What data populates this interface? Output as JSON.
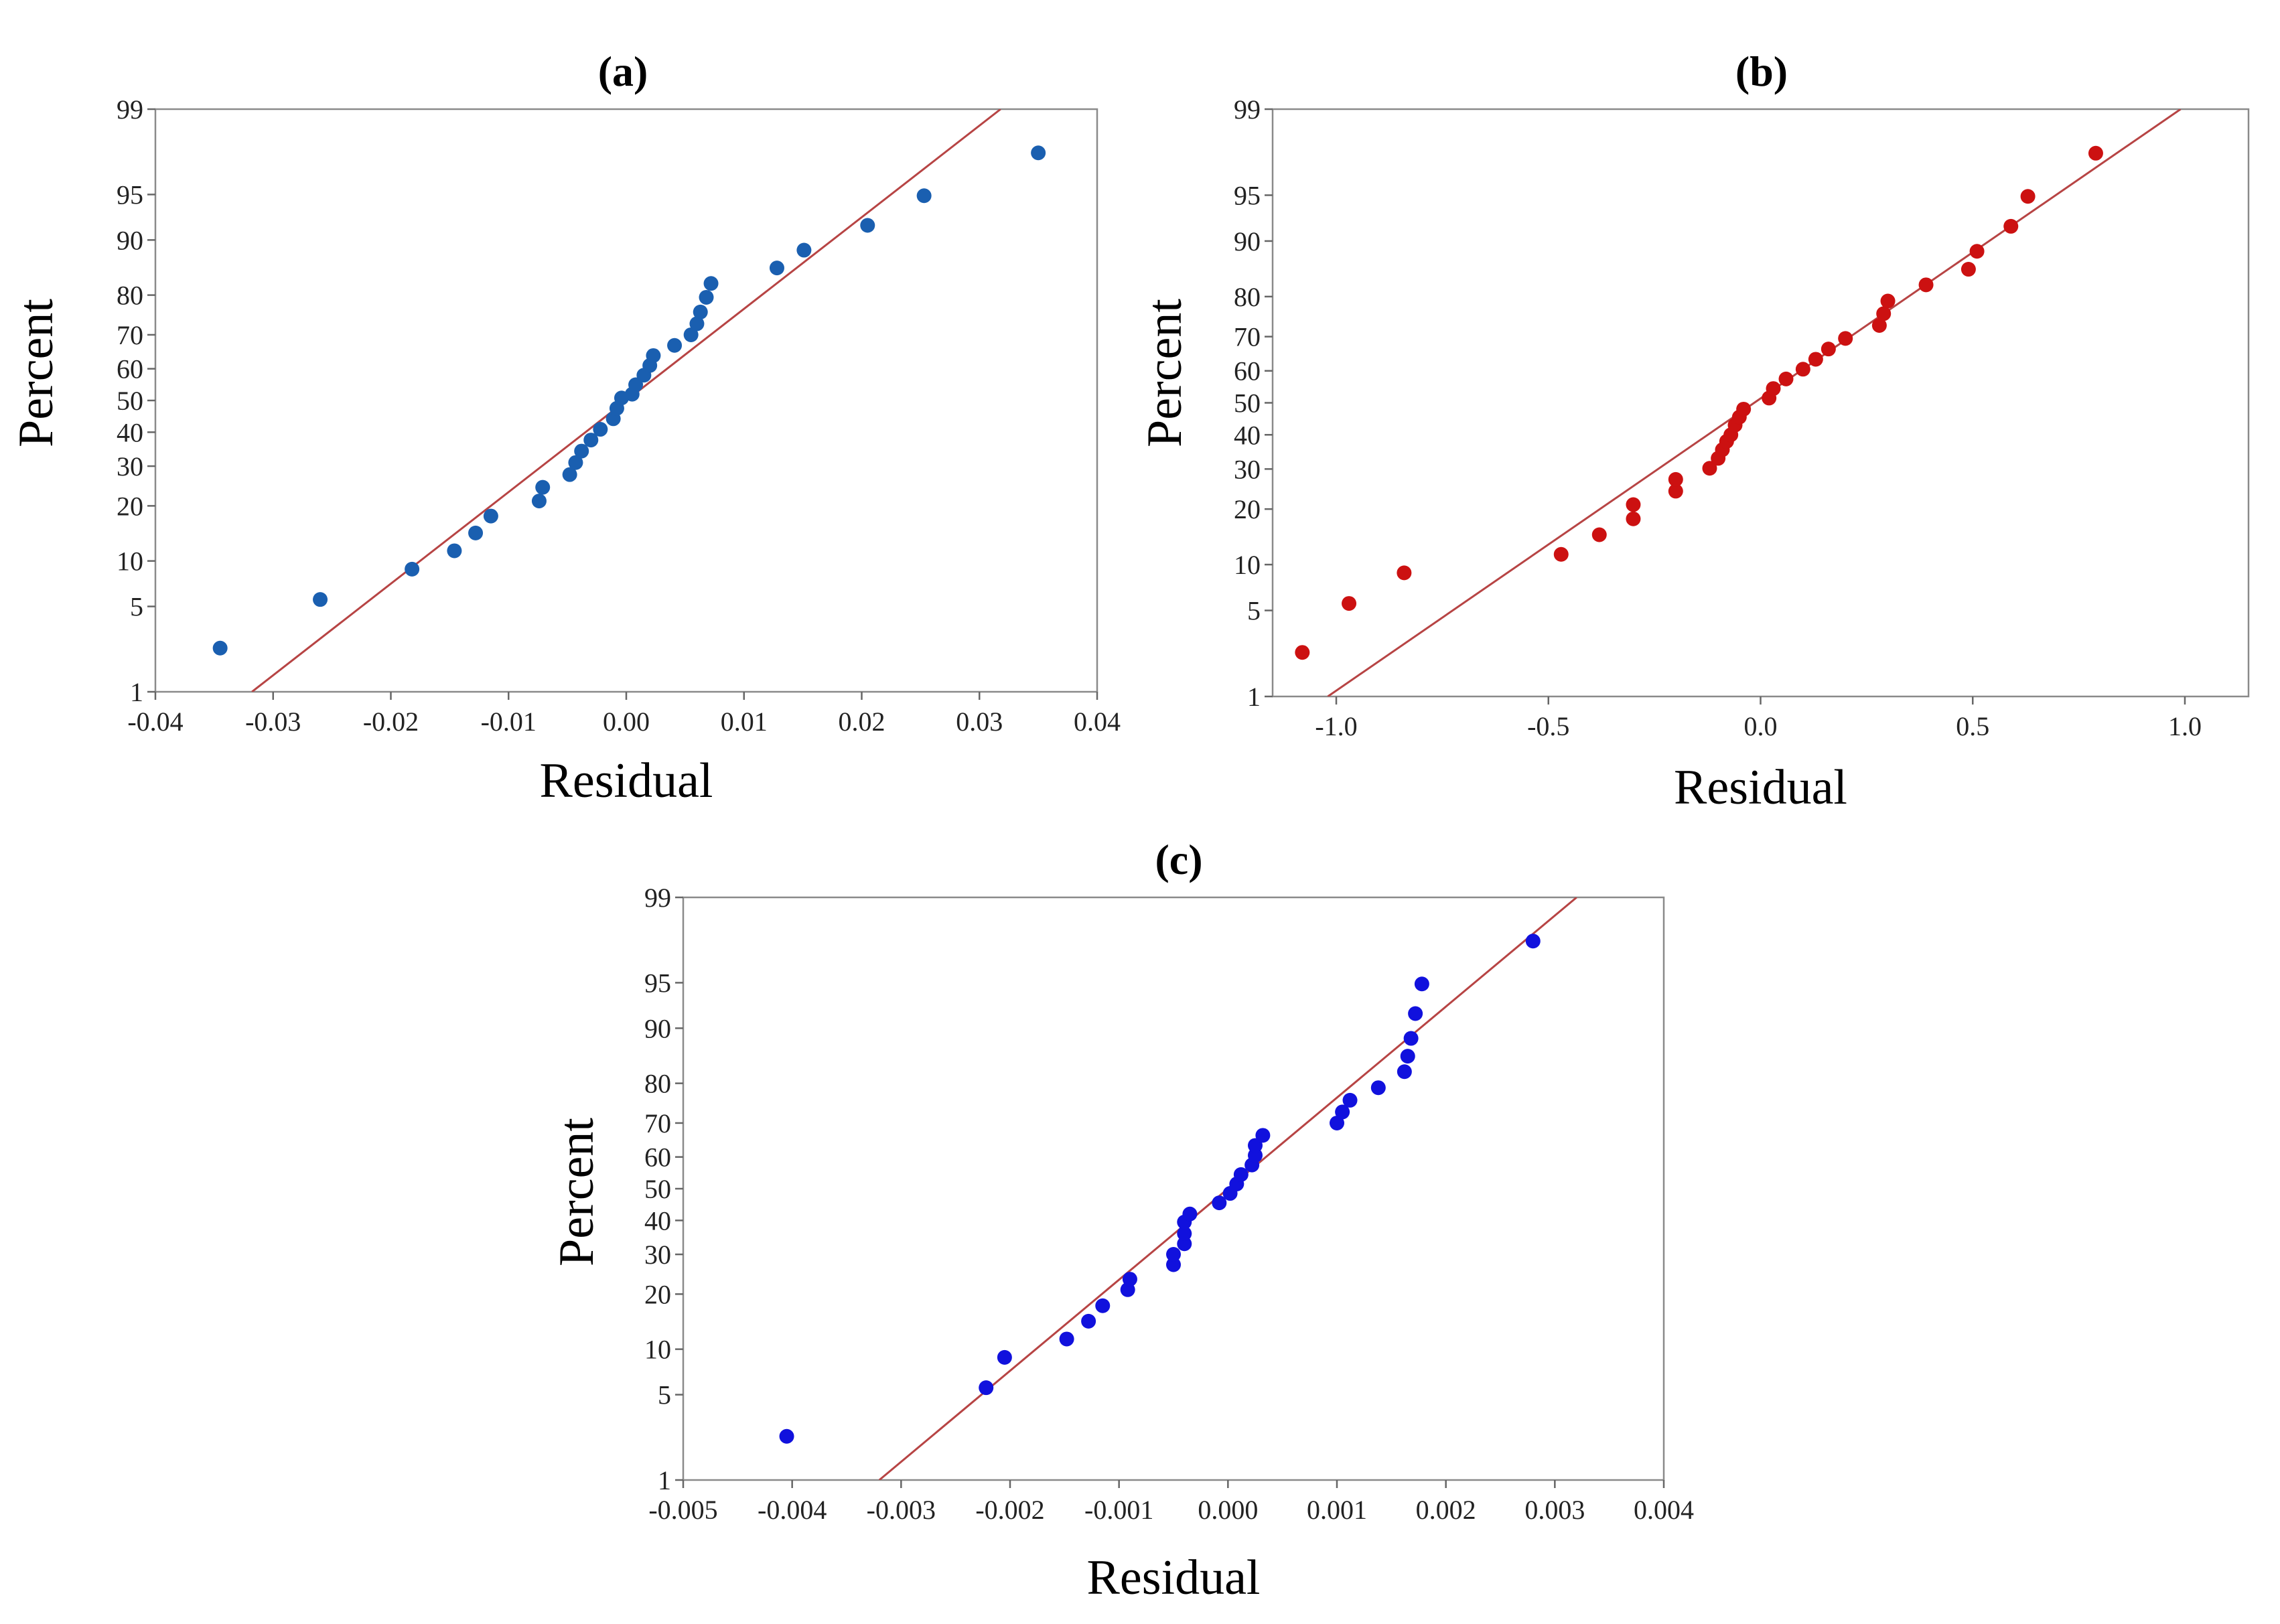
{
  "chart_data": [
    {
      "type": "scatter",
      "title": "(a)",
      "xlabel": "Residual",
      "ylabel": "Percent",
      "xlim": [
        -0.04,
        0.04
      ],
      "xticks": [
        -0.04,
        -0.03,
        -0.02,
        -0.01,
        0.0,
        0.01,
        0.02,
        0.03,
        0.04
      ],
      "xtick_labels": [
        "-0.04",
        "-0.03",
        "-0.02",
        "-0.01",
        "0.00",
        "0.01",
        "0.02",
        "0.03",
        "0.04"
      ],
      "ylim": [
        1,
        99
      ],
      "yticks": [
        1,
        5,
        10,
        20,
        30,
        40,
        50,
        60,
        70,
        80,
        90,
        95,
        99
      ],
      "ytick_labels": [
        "1",
        "5",
        "10",
        "20",
        "30",
        "40",
        "50",
        "60",
        "70",
        "80",
        "90",
        "95",
        "99"
      ],
      "point_color": "#1a5fb0",
      "line_color": "#b74444",
      "fit_line": {
        "x": [
          -0.0318,
          0.0318
        ],
        "percent": [
          1,
          99
        ]
      },
      "points": [
        {
          "x": -0.0345,
          "percent": 2.4
        },
        {
          "x": -0.026,
          "percent": 5.6
        },
        {
          "x": -0.0182,
          "percent": 8.9
        },
        {
          "x": -0.0146,
          "percent": 11.5
        },
        {
          "x": -0.0128,
          "percent": 14.5
        },
        {
          "x": -0.0115,
          "percent": 17.8
        },
        {
          "x": -0.0074,
          "percent": 21.1
        },
        {
          "x": -0.0071,
          "percent": 24.4
        },
        {
          "x": -0.0048,
          "percent": 27.7
        },
        {
          "x": -0.0043,
          "percent": 31.0
        },
        {
          "x": -0.0038,
          "percent": 34.3
        },
        {
          "x": -0.003,
          "percent": 37.6
        },
        {
          "x": -0.0022,
          "percent": 40.9
        },
        {
          "x": -0.0011,
          "percent": 44.2
        },
        {
          "x": -0.0008,
          "percent": 47.5
        },
        {
          "x": -0.0004,
          "percent": 50.8
        },
        {
          "x": 0.0005,
          "percent": 52.0
        },
        {
          "x": 0.0008,
          "percent": 55.0
        },
        {
          "x": 0.0015,
          "percent": 58.0
        },
        {
          "x": 0.002,
          "percent": 61.0
        },
        {
          "x": 0.0023,
          "percent": 64.0
        },
        {
          "x": 0.0041,
          "percent": 67.0
        },
        {
          "x": 0.0055,
          "percent": 70.0
        },
        {
          "x": 0.006,
          "percent": 73.0
        },
        {
          "x": 0.0063,
          "percent": 76.0
        },
        {
          "x": 0.0068,
          "percent": 79.5
        },
        {
          "x": 0.0072,
          "percent": 82.5
        },
        {
          "x": 0.0128,
          "percent": 85.5
        },
        {
          "x": 0.0151,
          "percent": 88.5
        },
        {
          "x": 0.0205,
          "percent": 91.9
        },
        {
          "x": 0.0253,
          "percent": 94.9
        },
        {
          "x": 0.035,
          "percent": 97.6
        }
      ]
    },
    {
      "type": "scatter",
      "title": "(b)",
      "xlabel": "Residual",
      "ylabel": "Percent",
      "xlim": [
        -1.15,
        1.15
      ],
      "xticks": [
        -1.0,
        -0.5,
        0.0,
        0.5,
        1.0
      ],
      "xtick_labels": [
        "-1.0",
        "-0.5",
        "0.0",
        "0.5",
        "1.0"
      ],
      "ylim": [
        1,
        99
      ],
      "yticks": [
        1,
        5,
        10,
        20,
        30,
        40,
        50,
        60,
        70,
        80,
        90,
        95,
        99
      ],
      "ytick_labels": [
        "1",
        "5",
        "10",
        "20",
        "30",
        "40",
        "50",
        "60",
        "70",
        "80",
        "90",
        "95",
        "99"
      ],
      "point_color": "#cc1111",
      "line_color": "#b74444",
      "fit_line": {
        "x": [
          -1.02,
          0.99
        ],
        "percent": [
          1,
          99
        ]
      },
      "points": [
        {
          "x": -1.08,
          "percent": 2.4
        },
        {
          "x": -0.97,
          "percent": 5.6
        },
        {
          "x": -0.84,
          "percent": 8.9
        },
        {
          "x": -0.47,
          "percent": 11.5
        },
        {
          "x": -0.38,
          "percent": 14.8
        },
        {
          "x": -0.3,
          "percent": 17.9
        },
        {
          "x": -0.3,
          "percent": 21.0
        },
        {
          "x": -0.2,
          "percent": 24.2
        },
        {
          "x": -0.2,
          "percent": 27.2
        },
        {
          "x": -0.12,
          "percent": 30.2
        },
        {
          "x": -0.1,
          "percent": 33.0
        },
        {
          "x": -0.09,
          "percent": 35.5
        },
        {
          "x": -0.08,
          "percent": 38.0
        },
        {
          "x": -0.07,
          "percent": 40.0
        },
        {
          "x": -0.06,
          "percent": 43.0
        },
        {
          "x": -0.05,
          "percent": 45.5
        },
        {
          "x": -0.04,
          "percent": 48.0
        },
        {
          "x": 0.02,
          "percent": 51.5
        },
        {
          "x": 0.03,
          "percent": 54.5
        },
        {
          "x": 0.06,
          "percent": 57.5
        },
        {
          "x": 0.1,
          "percent": 60.5
        },
        {
          "x": 0.13,
          "percent": 63.5
        },
        {
          "x": 0.16,
          "percent": 66.5
        },
        {
          "x": 0.2,
          "percent": 69.5
        },
        {
          "x": 0.28,
          "percent": 73.0
        },
        {
          "x": 0.29,
          "percent": 76.0
        },
        {
          "x": 0.3,
          "percent": 79.0
        },
        {
          "x": 0.39,
          "percent": 82.5
        },
        {
          "x": 0.49,
          "percent": 85.5
        },
        {
          "x": 0.51,
          "percent": 88.5
        },
        {
          "x": 0.59,
          "percent": 91.9
        },
        {
          "x": 0.63,
          "percent": 94.9
        },
        {
          "x": 0.79,
          "percent": 97.6
        }
      ]
    },
    {
      "type": "scatter",
      "title": "(c)",
      "xlabel": "Residual",
      "ylabel": "Percent",
      "xlim": [
        -0.005,
        0.004
      ],
      "xticks": [
        -0.005,
        -0.004,
        -0.003,
        -0.002,
        -0.001,
        0.0,
        0.001,
        0.002,
        0.003,
        0.004
      ],
      "xtick_labels": [
        "-0.005",
        "-0.004",
        "-0.003",
        "-0.002",
        "-0.001",
        "0.000",
        "0.001",
        "0.002",
        "0.003",
        "0.004"
      ],
      "ylim": [
        1,
        99
      ],
      "yticks": [
        1,
        5,
        10,
        20,
        30,
        40,
        50,
        60,
        70,
        80,
        90,
        95,
        99
      ],
      "ytick_labels": [
        "1",
        "5",
        "10",
        "20",
        "30",
        "40",
        "50",
        "60",
        "70",
        "80",
        "90",
        "95",
        "99"
      ],
      "point_color": "#1111dd",
      "line_color": "#b74444",
      "fit_line": {
        "x": [
          -0.0032,
          0.0032
        ],
        "percent": [
          1,
          99
        ]
      },
      "points": [
        {
          "x": -0.00405,
          "percent": 2.4
        },
        {
          "x": -0.00222,
          "percent": 5.6
        },
        {
          "x": -0.00205,
          "percent": 8.9
        },
        {
          "x": -0.00148,
          "percent": 11.5
        },
        {
          "x": -0.00128,
          "percent": 14.5
        },
        {
          "x": -0.00115,
          "percent": 17.5
        },
        {
          "x": -0.00092,
          "percent": 21.0
        },
        {
          "x": -0.0009,
          "percent": 23.5
        },
        {
          "x": -0.0005,
          "percent": 27.2
        },
        {
          "x": -0.0005,
          "percent": 30.0
        },
        {
          "x": -0.0004,
          "percent": 33.0
        },
        {
          "x": -0.0004,
          "percent": 36.0
        },
        {
          "x": -0.0004,
          "percent": 39.5
        },
        {
          "x": -0.00035,
          "percent": 42.0
        },
        {
          "x": -8e-05,
          "percent": 45.5
        },
        {
          "x": 2e-05,
          "percent": 48.5
        },
        {
          "x": 8e-05,
          "percent": 51.5
        },
        {
          "x": 0.00012,
          "percent": 54.5
        },
        {
          "x": 0.00022,
          "percent": 57.5
        },
        {
          "x": 0.00025,
          "percent": 60.5
        },
        {
          "x": 0.00025,
          "percent": 63.5
        },
        {
          "x": 0.00032,
          "percent": 66.5
        },
        {
          "x": 0.001,
          "percent": 70.0
        },
        {
          "x": 0.00105,
          "percent": 73.0
        },
        {
          "x": 0.00112,
          "percent": 76.0
        },
        {
          "x": 0.00138,
          "percent": 79.0
        },
        {
          "x": 0.00162,
          "percent": 82.5
        },
        {
          "x": 0.00165,
          "percent": 85.5
        },
        {
          "x": 0.00168,
          "percent": 88.5
        },
        {
          "x": 0.00172,
          "percent": 91.9
        },
        {
          "x": 0.00178,
          "percent": 94.9
        },
        {
          "x": 0.0028,
          "percent": 97.6
        }
      ]
    }
  ]
}
